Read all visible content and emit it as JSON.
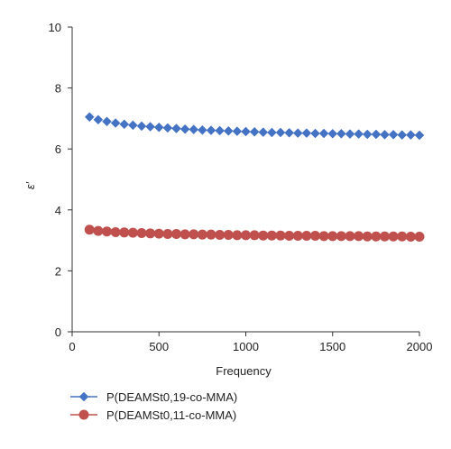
{
  "chart_data": {
    "type": "scatter",
    "title": "",
    "xlabel": "Frequency",
    "ylabel": "ε′",
    "xlim": [
      0,
      2000
    ],
    "ylim": [
      0,
      10
    ],
    "x_ticks": [
      "0",
      "500",
      "1000",
      "1500",
      "2000"
    ],
    "y_ticks": [
      "0",
      "2",
      "4",
      "6",
      "8",
      "10"
    ],
    "grid": false,
    "legend_position": "bottom",
    "series": [
      {
        "name": "P(DEAMSt0,19-co-MMA)",
        "color": "#4472C4",
        "marker": "diamond",
        "x": [
          100,
          150,
          200,
          250,
          300,
          350,
          400,
          450,
          500,
          550,
          600,
          650,
          700,
          750,
          800,
          850,
          900,
          950,
          1000,
          1050,
          1100,
          1150,
          1200,
          1250,
          1300,
          1350,
          1400,
          1450,
          1500,
          1550,
          1600,
          1650,
          1700,
          1750,
          1800,
          1850,
          1900,
          1950,
          2000
        ],
        "values": [
          7.05,
          6.96,
          6.9,
          6.85,
          6.81,
          6.78,
          6.75,
          6.73,
          6.71,
          6.69,
          6.67,
          6.65,
          6.64,
          6.62,
          6.61,
          6.6,
          6.59,
          6.58,
          6.57,
          6.56,
          6.55,
          6.54,
          6.54,
          6.53,
          6.52,
          6.52,
          6.51,
          6.51,
          6.5,
          6.5,
          6.49,
          6.49,
          6.48,
          6.48,
          6.47,
          6.47,
          6.46,
          6.46,
          6.45
        ]
      },
      {
        "name": "P(DEAMSt0,11-co-MMA)",
        "color": "#C0504D",
        "marker": "circle",
        "x": [
          100,
          150,
          200,
          250,
          300,
          350,
          400,
          450,
          500,
          550,
          600,
          650,
          700,
          750,
          800,
          850,
          900,
          950,
          1000,
          1050,
          1100,
          1150,
          1200,
          1250,
          1300,
          1350,
          1400,
          1450,
          1500,
          1550,
          1600,
          1650,
          1700,
          1750,
          1800,
          1850,
          1900,
          1950,
          2000
        ],
        "values": [
          3.35,
          3.31,
          3.29,
          3.27,
          3.26,
          3.25,
          3.24,
          3.23,
          3.22,
          3.21,
          3.21,
          3.2,
          3.2,
          3.19,
          3.19,
          3.18,
          3.18,
          3.17,
          3.17,
          3.17,
          3.16,
          3.16,
          3.16,
          3.15,
          3.15,
          3.15,
          3.15,
          3.14,
          3.14,
          3.14,
          3.14,
          3.14,
          3.13,
          3.13,
          3.13,
          3.13,
          3.13,
          3.12,
          3.12
        ]
      }
    ]
  }
}
